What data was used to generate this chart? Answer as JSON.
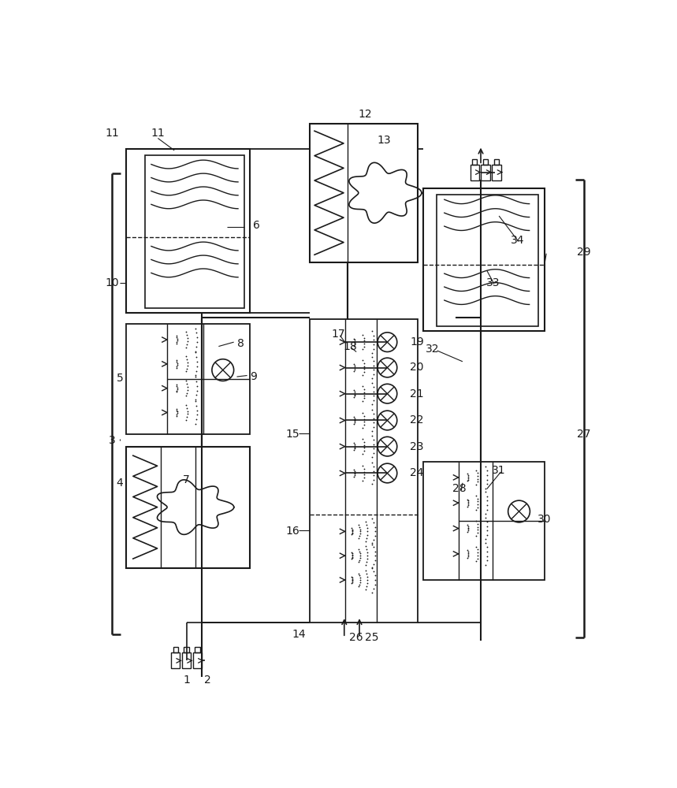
{
  "bg_color": "#ffffff",
  "line_color": "#1a1a1a",
  "fig_width": 8.59,
  "fig_height": 10.0
}
